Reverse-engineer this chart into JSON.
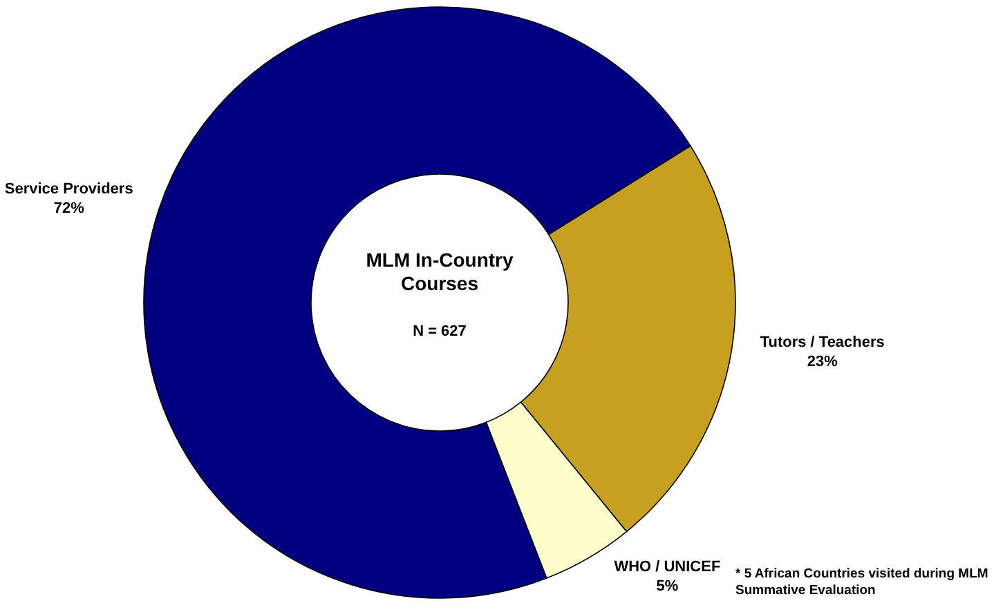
{
  "chart_data": {
    "type": "donut",
    "title": "MLM In-Country Courses",
    "subtitle": "N = 627",
    "categories": [
      "Tutors / Teachers",
      "WHO / UNICEF",
      "Service Providers"
    ],
    "values": [
      23,
      5,
      72
    ],
    "value_labels": [
      "23%",
      "5%",
      "72%"
    ],
    "colors": [
      "#c8a020",
      "#ffffcc",
      "#000080"
    ],
    "annotations": [
      "* 5 African Countries visited during MLM Summative Evaluation"
    ]
  }
}
